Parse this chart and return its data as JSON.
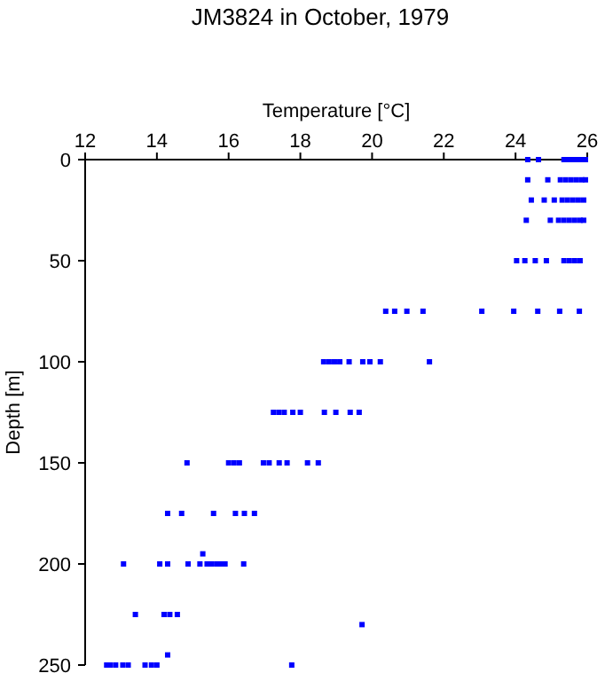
{
  "chart_data": {
    "type": "scatter",
    "title": "JM3824 in October, 1979",
    "xlabel": "Temperature [°C]",
    "ylabel": "Depth [m]",
    "xlim": [
      12,
      26
    ],
    "xticks": [
      12,
      14,
      16,
      18,
      20,
      22,
      24,
      26
    ],
    "ylim": [
      250,
      0
    ],
    "yticks": [
      0,
      50,
      100,
      150,
      200,
      250
    ],
    "grid": false,
    "marker": "square",
    "series": [
      {
        "color": "#0000ff",
        "x": [
          24.34,
          24.64,
          25.35,
          25.45,
          25.55,
          25.65,
          25.75,
          25.85,
          25.95,
          24.34,
          24.9,
          25.25,
          25.4,
          25.55,
          25.7,
          25.85,
          25.95,
          24.44,
          24.8,
          25.08,
          25.3,
          25.45,
          25.6,
          25.75,
          25.9,
          24.3,
          24.97,
          25.2,
          25.35,
          25.5,
          25.65,
          25.8,
          25.9,
          24.03,
          24.26,
          24.55,
          24.86,
          25.35,
          25.5,
          25.65,
          25.8,
          20.38,
          20.63,
          20.97,
          21.42,
          23.06,
          23.95,
          24.62,
          25.23,
          25.78,
          18.65,
          18.8,
          18.95,
          19.1,
          19.36,
          19.74,
          19.94,
          20.23,
          21.6,
          17.25,
          17.4,
          17.55,
          17.79,
          18.0,
          18.67,
          18.99,
          19.39,
          19.64,
          14.84,
          16.0,
          16.15,
          16.3,
          16.97,
          17.13,
          17.41,
          17.63,
          18.2,
          18.5,
          14.3,
          14.69,
          15.58,
          16.19,
          16.44,
          16.72,
          15.28,
          13.07,
          14.08,
          14.3,
          14.87,
          15.2,
          15.4,
          15.53,
          15.67,
          15.8,
          15.9,
          16.42,
          13.4,
          14.2,
          14.36,
          14.57,
          19.72,
          14.3,
          12.6,
          12.7,
          12.85,
          13.05,
          13.2,
          13.67,
          13.85,
          14.0,
          17.76
        ],
        "values": [
          0,
          0,
          0,
          0,
          0,
          0,
          0,
          0,
          0,
          10,
          10,
          10,
          10,
          10,
          10,
          10,
          10,
          20,
          20,
          20,
          20,
          20,
          20,
          20,
          20,
          30,
          30,
          30,
          30,
          30,
          30,
          30,
          30,
          50,
          50,
          50,
          50,
          50,
          50,
          50,
          50,
          75,
          75,
          75,
          75,
          75,
          75,
          75,
          75,
          75,
          100,
          100,
          100,
          100,
          100,
          100,
          100,
          100,
          100,
          125,
          125,
          125,
          125,
          125,
          125,
          125,
          125,
          125,
          150,
          150,
          150,
          150,
          150,
          150,
          150,
          150,
          150,
          150,
          175,
          175,
          175,
          175,
          175,
          175,
          195,
          200,
          200,
          200,
          200,
          200,
          200,
          200,
          200,
          200,
          200,
          200,
          225,
          225,
          225,
          225,
          230,
          245,
          250,
          250,
          250,
          250,
          250,
          250,
          250,
          250,
          250
        ]
      }
    ]
  }
}
